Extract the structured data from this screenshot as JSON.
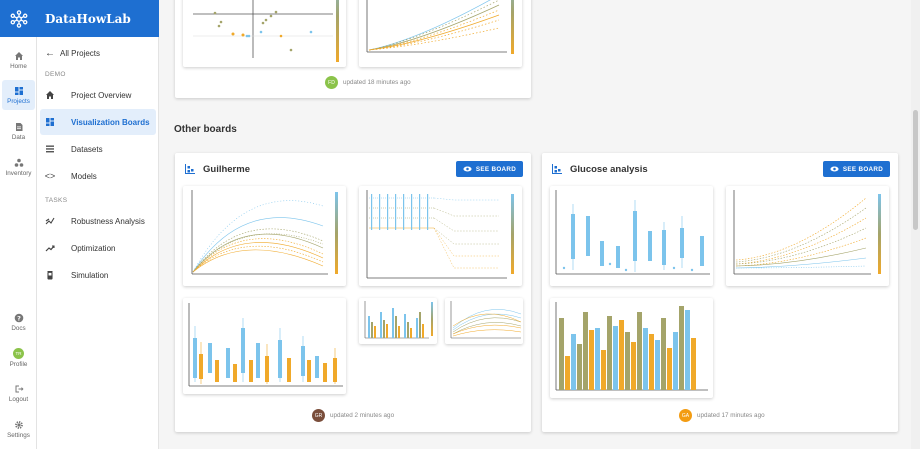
{
  "app": {
    "brand": "DataHowLab"
  },
  "rail": {
    "items": [
      {
        "label": "Home"
      },
      {
        "label": "Projects"
      },
      {
        "label": "Data"
      },
      {
        "label": "Inventory"
      }
    ],
    "bottom": [
      {
        "label": "Docs"
      },
      {
        "label": "Profile",
        "avatar": "TR"
      },
      {
        "label": "Logout"
      },
      {
        "label": "Settings"
      }
    ]
  },
  "nav": {
    "back_label": "All Projects",
    "sections": [
      {
        "title": "DEMO"
      },
      {
        "title": "TASKS"
      }
    ],
    "demo_items": [
      {
        "label": "Project Overview"
      },
      {
        "label": "Visualization Boards"
      },
      {
        "label": "Datasets"
      },
      {
        "label": "Models"
      }
    ],
    "task_items": [
      {
        "label": "Robustness Analysis"
      },
      {
        "label": "Optimization"
      },
      {
        "label": "Simulation"
      }
    ]
  },
  "top_board": {
    "avatar": "FD",
    "updated": "updated 18 minutes ago"
  },
  "other_boards_title": "Other boards",
  "boards": [
    {
      "title": "Guilherme",
      "button": "SEE BOARD",
      "avatar": "GR",
      "updated": "updated 2 minutes ago"
    },
    {
      "title": "Glucose analysis",
      "button": "SEE BOARD",
      "avatar": "GA",
      "updated": "updated 17 minutes ago"
    }
  ],
  "colors": {
    "primary": "#1e6fd1",
    "chart_blue": "#7cc4ec",
    "chart_orange": "#f0a92a",
    "chart_olive": "#a4a46a",
    "avatar_green": "#8bc34a",
    "avatar_brown": "#7a4e3b",
    "avatar_orange": "#f39c12"
  }
}
